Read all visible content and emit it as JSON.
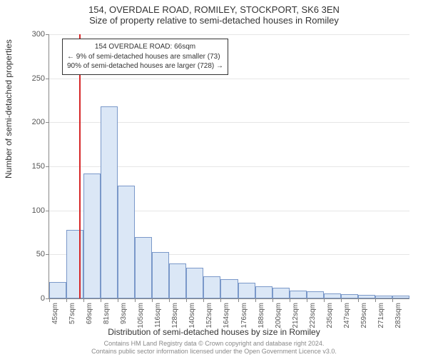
{
  "title_main": "154, OVERDALE ROAD, ROMILEY, STOCKPORT, SK6 3EN",
  "title_sub": "Size of property relative to semi-detached houses in Romiley",
  "ylabel": "Number of semi-detached properties",
  "xlabel": "Distribution of semi-detached houses by size in Romiley",
  "attribution_line1": "Contains HM Land Registry data © Crown copyright and database right 2024.",
  "attribution_line2": "Contains public sector information licensed under the Open Government Licence v3.0.",
  "chart": {
    "type": "histogram",
    "ylim": [
      0,
      300
    ],
    "yticks": [
      0,
      50,
      100,
      150,
      200,
      250,
      300
    ],
    "x_bin_start": 45,
    "x_bin_width": 12,
    "x_tick_labels": [
      "45sqm",
      "57sqm",
      "69sqm",
      "81sqm",
      "93sqm",
      "105sqm",
      "116sqm",
      "128sqm",
      "140sqm",
      "152sqm",
      "164sqm",
      "176sqm",
      "188sqm",
      "200sqm",
      "212sqm",
      "223sqm",
      "235sqm",
      "247sqm",
      "259sqm",
      "271sqm",
      "283sqm"
    ],
    "bar_values": [
      19,
      78,
      142,
      218,
      128,
      70,
      53,
      40,
      35,
      25,
      22,
      18,
      14,
      12,
      9,
      8,
      6,
      5,
      4,
      3,
      3
    ],
    "bar_fill": "#dbe7f6",
    "bar_border": "#7a98c9",
    "grid_color": "#e6e6e6",
    "background_color": "#ffffff",
    "marker": {
      "value_sqm": 66,
      "color": "#d62728"
    },
    "info_box": {
      "line1": "154 OVERDALE ROAD: 66sqm",
      "line2": "← 9% of semi-detached houses are smaller (73)",
      "line3": "90% of semi-detached houses are larger (728) →",
      "border_color": "#333333",
      "background": "#ffffff",
      "fontsize": 10
    },
    "title_fontsize": 13,
    "label_fontsize": 12,
    "tick_fontsize": 10
  }
}
